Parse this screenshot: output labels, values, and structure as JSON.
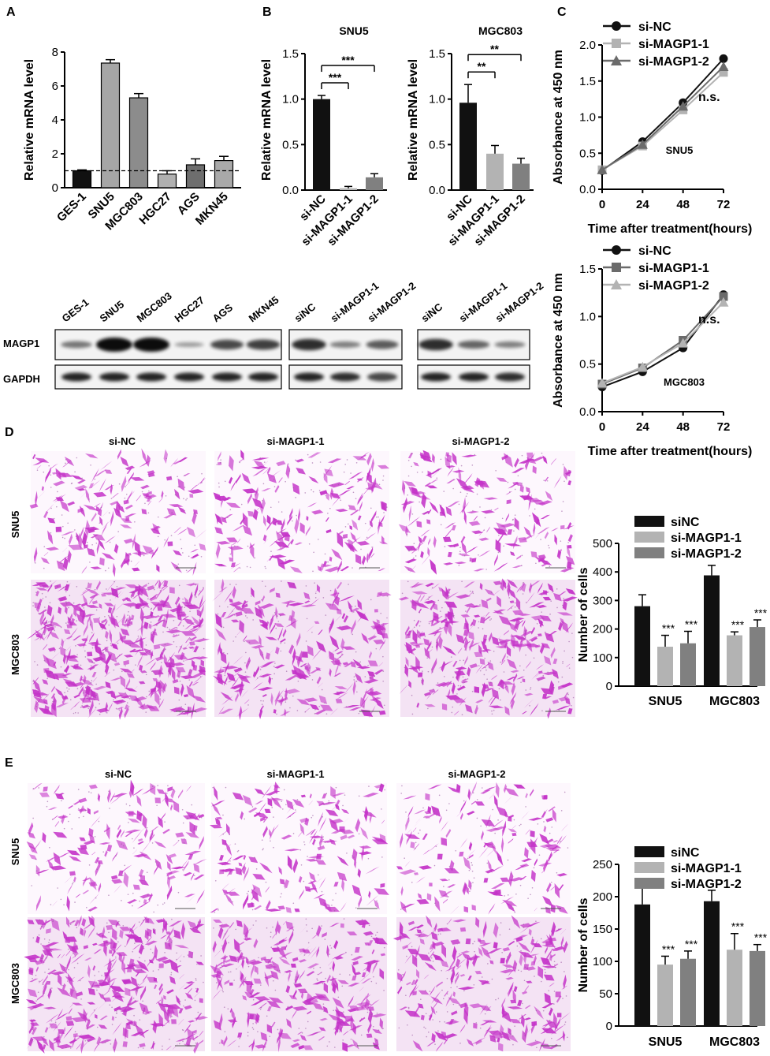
{
  "panel_labels": [
    "A",
    "B",
    "C",
    "D",
    "E"
  ],
  "colors": {
    "black": "#111111",
    "light_gray": "#b3b3b3",
    "mid_gray": "#8c8c8c",
    "dark_gray": "#6b6b6b",
    "stain": "#c433c8"
  },
  "microscopy": {
    "D": {
      "columns": [
        "si-NC",
        "si-MAGP1-1",
        "si-MAGP1-2"
      ],
      "rows": [
        "SNU5",
        "MGC803"
      ]
    },
    "E": {
      "columns": [
        "si-NC",
        "si-MAGP1-1",
        "si-MAGP1-2"
      ],
      "rows": [
        "SNU5",
        "MGC803"
      ]
    }
  },
  "western_blots": [
    {
      "lanes": [
        "GES-1",
        "SNU5",
        "MGC803",
        "HGC27",
        "AGS",
        "MKN45"
      ],
      "rows": [
        "MAGP1",
        "GAPDH"
      ],
      "intensity": [
        [
          0.35,
          1.0,
          1.0,
          0.15,
          0.6,
          0.65
        ],
        [
          0.8,
          0.8,
          0.8,
          0.8,
          0.8,
          0.8
        ]
      ]
    },
    {
      "lanes": [
        "siNC",
        "si-MAGP1-1",
        "si-MAGP1-2"
      ],
      "intensity": [
        [
          0.75,
          0.3,
          0.5
        ],
        [
          0.8,
          0.75,
          0.6
        ]
      ]
    },
    {
      "lanes": [
        "siNC",
        "si-MAGP1-1",
        "si-MAGP1-2"
      ],
      "intensity": [
        [
          0.75,
          0.45,
          0.3
        ],
        [
          0.8,
          0.8,
          0.75
        ]
      ]
    }
  ],
  "chart_data": [
    {
      "id": "A",
      "type": "bar",
      "categories": [
        "GES-1",
        "SNU5",
        "MGC803",
        "HGC27",
        "AGS",
        "MKN45"
      ],
      "values": [
        1.0,
        7.35,
        5.3,
        0.8,
        1.35,
        1.6
      ],
      "errors": [
        0.05,
        0.2,
        0.25,
        0.2,
        0.35,
        0.25
      ],
      "colors": [
        "#111111",
        "#a6a6a6",
        "#8c8c8c",
        "#b0b0b0",
        "#6e6e6e",
        "#a9a9a9"
      ],
      "ylabel": "Relative mRNA level",
      "ylim": [
        0,
        8
      ],
      "yticks": [
        0,
        2,
        4,
        6,
        8
      ],
      "reference_line": 1.0
    },
    {
      "id": "B1",
      "type": "bar",
      "title": "SNU5",
      "categories": [
        "si-NC",
        "si-MAGP1-1",
        "si-MAGP1-2"
      ],
      "values": [
        1.0,
        0.02,
        0.14
      ],
      "errors": [
        0.04,
        0.02,
        0.04
      ],
      "colors": [
        "#111111",
        "#b3b3b3",
        "#808080"
      ],
      "ylabel": "Relative mRNA  level",
      "ylim": [
        0,
        1.5
      ],
      "yticks": [
        "0.0",
        "0.5",
        "1.0",
        "1.5"
      ],
      "significance": [
        {
          "from": 0,
          "to": 1,
          "label": "***"
        },
        {
          "from": 0,
          "to": 2,
          "label": "***"
        }
      ]
    },
    {
      "id": "B2",
      "type": "bar",
      "title": "MGC803",
      "categories": [
        "si-NC",
        "si-MAGP1-1",
        "si-MAGP1-2"
      ],
      "values": [
        0.96,
        0.4,
        0.29
      ],
      "errors": [
        0.2,
        0.09,
        0.06
      ],
      "colors": [
        "#111111",
        "#b3b3b3",
        "#808080"
      ],
      "ylabel": "Relative mRNA level",
      "ylim": [
        0,
        1.5
      ],
      "yticks": [
        "0.0",
        "0.5",
        "1.0",
        "1.5"
      ],
      "significance": [
        {
          "from": 0,
          "to": 1,
          "label": "**"
        },
        {
          "from": 0,
          "to": 2,
          "label": "**"
        }
      ]
    },
    {
      "id": "C1",
      "type": "line",
      "annotation": "SNU5",
      "x": [
        0,
        24,
        48,
        72
      ],
      "series": [
        {
          "name": "si-NC",
          "values": [
            0.26,
            0.66,
            1.2,
            1.81
          ],
          "marker": "circle",
          "color": "#111111"
        },
        {
          "name": "si-MAGP1-1",
          "values": [
            0.27,
            0.6,
            1.1,
            1.62
          ],
          "marker": "square",
          "color": "#b3b3b3"
        },
        {
          "name": "si-MAGP1-2",
          "values": [
            0.27,
            0.62,
            1.15,
            1.7
          ],
          "marker": "triangle",
          "color": "#6b6b6b"
        }
      ],
      "xlabel": "Time after treatment(hours)",
      "ylabel": "Absorbance at 450 nm",
      "xticks": [
        0,
        24,
        48,
        72
      ],
      "ylim": [
        0,
        2.0
      ],
      "yticks": [
        "0.0",
        "0.5",
        "1.0",
        "1.5",
        "2.0"
      ],
      "significance": "n.s."
    },
    {
      "id": "C2",
      "type": "line",
      "annotation": "MGC803",
      "x": [
        0,
        24,
        48,
        72
      ],
      "series": [
        {
          "name": "si-NC",
          "values": [
            0.26,
            0.42,
            0.67,
            1.23
          ],
          "marker": "circle",
          "color": "#111111"
        },
        {
          "name": "si-MAGP1-1",
          "values": [
            0.29,
            0.46,
            0.75,
            1.21
          ],
          "marker": "square",
          "color": "#6b6b6b"
        },
        {
          "name": "si-MAGP1-2",
          "values": [
            0.3,
            0.47,
            0.72,
            1.15
          ],
          "marker": "triangle",
          "color": "#b3b3b3"
        }
      ],
      "xlabel": "Time after treatment(hours)",
      "ylabel": "Absorbance at 450 nm",
      "xticks": [
        0,
        24,
        48,
        72
      ],
      "ylim": [
        0,
        1.5
      ],
      "yticks": [
        "0.0",
        "0.5",
        "1.0",
        "1.5"
      ],
      "significance": "n.s."
    },
    {
      "id": "D",
      "type": "bar",
      "categories": [
        "SNU5",
        "MGC803"
      ],
      "series": [
        {
          "name": "siNC",
          "values": [
            280,
            388
          ],
          "errors": [
            40,
            35
          ],
          "color": "#111111"
        },
        {
          "name": "si-MAGP1-1",
          "values": [
            138,
            178
          ],
          "errors": [
            40,
            12
          ],
          "color": "#b3b3b3"
        },
        {
          "name": "si-MAGP1-2",
          "values": [
            150,
            207
          ],
          "errors": [
            42,
            25
          ],
          "color": "#808080"
        }
      ],
      "significance": [
        [
          "",
          "***",
          "***"
        ],
        [
          "",
          "***",
          "***"
        ]
      ],
      "ylabel": "Number of cells",
      "ylim": [
        0,
        500
      ],
      "yticks": [
        0,
        100,
        200,
        300,
        400,
        500
      ]
    },
    {
      "id": "E",
      "type": "bar",
      "categories": [
        "SNU5",
        "MGC803"
      ],
      "series": [
        {
          "name": "siNC",
          "values": [
            188,
            193
          ],
          "errors": [
            30,
            17
          ],
          "color": "#111111"
        },
        {
          "name": "si-MAGP1-1",
          "values": [
            95,
            118
          ],
          "errors": [
            13,
            25
          ],
          "color": "#b3b3b3"
        },
        {
          "name": "si-MAGP1-2",
          "values": [
            104,
            116
          ],
          "errors": [
            12,
            10
          ],
          "color": "#808080"
        }
      ],
      "significance": [
        [
          "",
          "***",
          "***"
        ],
        [
          "",
          "***",
          "***"
        ]
      ],
      "ylabel": "Number of cells",
      "ylim": [
        0,
        250
      ],
      "yticks": [
        0,
        50,
        100,
        150,
        200,
        250
      ]
    }
  ]
}
